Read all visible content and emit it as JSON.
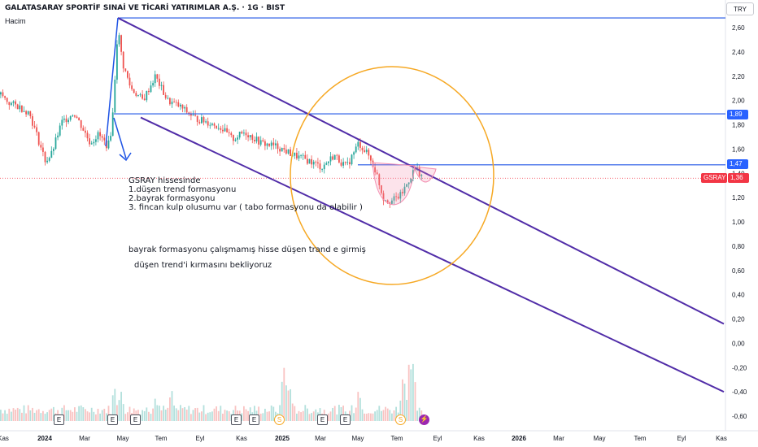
{
  "header": {
    "title": "GALATASARAY SPORTİF SINAİ VE TİCARİ YATIRIMLAR A.Ş. · 1G · BIST",
    "volume_label": "Hacim",
    "currency": "TRY"
  },
  "annotations": {
    "lines": [
      "GSRAY hissesinde",
      "1.düşen trend formasyonu",
      "2.bayrak formasyonu",
      "3. fincan kulp olusumu var ( tabo formasyonu da olabilir )"
    ],
    "note2": "bayrak formasyonu çalışmamış hisse düşen trand e girmiş",
    "note3": "düşen trend'i kırmasını bekliyoruz"
  },
  "price_tags": {
    "level_189": "1,89",
    "level_147": "1,47",
    "symbol": "GSRAY",
    "last": "1,36"
  },
  "events": [
    {
      "label": "E",
      "kind": "earnings"
    },
    {
      "label": "E",
      "kind": "earnings"
    },
    {
      "label": "E",
      "kind": "earnings"
    },
    {
      "label": "E",
      "kind": "earnings"
    },
    {
      "label": "E",
      "kind": "earnings"
    },
    {
      "label": "S",
      "kind": "split"
    },
    {
      "label": "E",
      "kind": "earnings"
    },
    {
      "label": "E",
      "kind": "earnings"
    },
    {
      "label": "S",
      "kind": "split"
    },
    {
      "label": "⚡",
      "kind": "flash"
    }
  ],
  "colors": {
    "up": "#26a69a",
    "down": "#ef5350",
    "channel": "#512da8",
    "horizontal": "#1e53e5",
    "circle": "#f6a823",
    "cup": "#f48fb1"
  },
  "chart_data": {
    "type": "candlestick",
    "y_axis": {
      "ticks": [
        "2,60",
        "2,40",
        "2,20",
        "2,00",
        "1,80",
        "1,60",
        "1,40",
        "1,20",
        "1,00",
        "0,80",
        "0,60",
        "0,40",
        "0,20",
        "0,00",
        "-0,20",
        "-0,40",
        "-0,60"
      ],
      "tick_values": [
        2.6,
        2.4,
        2.2,
        2.0,
        1.8,
        1.6,
        1.4,
        1.2,
        1.0,
        0.8,
        0.6,
        0.4,
        0.2,
        0.0,
        -0.2,
        -0.4,
        -0.6
      ],
      "ylim": [
        -0.68,
        2.72
      ]
    },
    "x_axis": {
      "labels": [
        "Kas",
        "2024",
        "Mar",
        "May",
        "Tem",
        "Eyl",
        "Kas",
        "2025",
        "Mar",
        "May",
        "Tem",
        "Eyl",
        "Kas",
        "2026",
        "Mar",
        "May",
        "Tem",
        "Eyl",
        "Kas"
      ],
      "bold": [
        "2024",
        "2025",
        "2026"
      ]
    },
    "horizontal_levels": [
      2.68,
      1.89,
      1.47
    ],
    "last_price": 1.36,
    "price_path": [
      {
        "t": 0,
        "p": 2.05
      },
      {
        "t": 10,
        "p": 1.98
      },
      {
        "t": 22,
        "p": 1.95
      },
      {
        "t": 35,
        "p": 1.9
      },
      {
        "t": 45,
        "p": 1.7
      },
      {
        "t": 55,
        "p": 1.5
      },
      {
        "t": 62,
        "p": 1.55
      },
      {
        "t": 75,
        "p": 1.82
      },
      {
        "t": 90,
        "p": 1.9
      },
      {
        "t": 100,
        "p": 1.78
      },
      {
        "t": 110,
        "p": 1.65
      },
      {
        "t": 120,
        "p": 1.72
      },
      {
        "t": 132,
        "p": 1.62
      },
      {
        "t": 137,
        "p": 1.8
      },
      {
        "t": 144,
        "p": 2.6
      },
      {
        "t": 150,
        "p": 2.3
      },
      {
        "t": 160,
        "p": 2.1
      },
      {
        "t": 175,
        "p": 2.0
      },
      {
        "t": 190,
        "p": 2.2
      },
      {
        "t": 205,
        "p": 2.0
      },
      {
        "t": 220,
        "p": 1.95
      },
      {
        "t": 240,
        "p": 1.85
      },
      {
        "t": 255,
        "p": 1.82
      },
      {
        "t": 270,
        "p": 1.78
      },
      {
        "t": 285,
        "p": 1.68
      },
      {
        "t": 300,
        "p": 1.74
      },
      {
        "t": 320,
        "p": 1.65
      },
      {
        "t": 340,
        "p": 1.62
      },
      {
        "t": 360,
        "p": 1.55
      },
      {
        "t": 380,
        "p": 1.5
      },
      {
        "t": 395,
        "p": 1.45
      },
      {
        "t": 410,
        "p": 1.55
      },
      {
        "t": 425,
        "p": 1.45
      },
      {
        "t": 440,
        "p": 1.65
      },
      {
        "t": 452,
        "p": 1.55
      },
      {
        "t": 462,
        "p": 1.4
      },
      {
        "t": 470,
        "p": 1.2
      },
      {
        "t": 480,
        "p": 1.17
      },
      {
        "t": 492,
        "p": 1.22
      },
      {
        "t": 500,
        "p": 1.32
      },
      {
        "t": 510,
        "p": 1.45
      },
      {
        "t": 520,
        "p": 1.36
      }
    ],
    "channel": {
      "upper": {
        "from": {
          "t": 145,
          "p": 2.68
        },
        "to": {
          "t": 890,
          "p": 0.16
        }
      },
      "lower": {
        "from": {
          "t": 173,
          "p": 1.86
        },
        "to": {
          "t": 890,
          "p": -0.4
        }
      }
    },
    "volume_spikes": [
      {
        "t": 140,
        "v": 0.55
      },
      {
        "t": 148,
        "v": 0.5
      },
      {
        "t": 190,
        "v": 0.4
      },
      {
        "t": 210,
        "v": 0.45
      },
      {
        "t": 348,
        "v": 0.95
      },
      {
        "t": 355,
        "v": 0.6
      },
      {
        "t": 440,
        "v": 0.5
      },
      {
        "t": 495,
        "v": 0.75
      },
      {
        "t": 503,
        "v": 1.0
      },
      {
        "t": 508,
        "v": 0.85
      }
    ]
  }
}
